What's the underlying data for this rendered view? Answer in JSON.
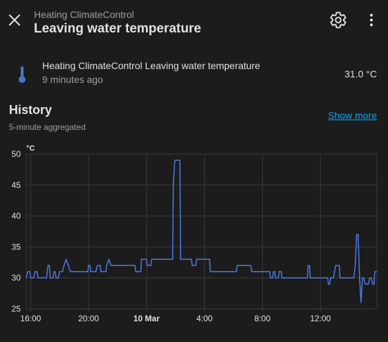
{
  "header": {
    "subtitle": "Heating ClimateControl",
    "title": "Leaving water temperature"
  },
  "icons": {
    "close": "close-icon",
    "settings": "gear-icon",
    "more": "more-vertical-icon",
    "entity": "thermometer-icon"
  },
  "entity": {
    "name": "Heating ClimateControl Leaving water temperature",
    "last_changed": "9 minutes ago",
    "state": "31.0 °C"
  },
  "history": {
    "title": "History",
    "subtitle": "5-minute aggregated",
    "show_more_label": "Show more"
  },
  "colors": {
    "background": "#1c1c1c",
    "line": "#4d7ae6",
    "accent": "#03a9f4",
    "grid": "#3a3a3a"
  },
  "chart_data": {
    "type": "line",
    "ylabel": "°C",
    "ylim": [
      25,
      50
    ],
    "yticks": [
      25,
      30,
      35,
      40,
      45,
      50
    ],
    "xlim": [
      15.7,
      39.9
    ],
    "xticks": [
      {
        "value": 16,
        "label": "16:00",
        "bold": false
      },
      {
        "value": 20,
        "label": "20:00",
        "bold": false
      },
      {
        "value": 24,
        "label": "10 Mar",
        "bold": true
      },
      {
        "value": 28,
        "label": "4:00",
        "bold": false
      },
      {
        "value": 32,
        "label": "8:00",
        "bold": false
      },
      {
        "value": 36,
        "label": "12:00",
        "bold": false
      }
    ],
    "grid": true,
    "series": [
      {
        "points": [
          [
            15.7,
            30
          ],
          [
            15.8,
            31
          ],
          [
            15.95,
            31
          ],
          [
            16.0,
            30
          ],
          [
            16.2,
            30
          ],
          [
            16.3,
            31
          ],
          [
            16.45,
            31
          ],
          [
            16.5,
            30
          ],
          [
            17.1,
            30
          ],
          [
            17.2,
            32
          ],
          [
            17.3,
            32
          ],
          [
            17.35,
            30
          ],
          [
            17.55,
            30
          ],
          [
            17.6,
            31
          ],
          [
            17.7,
            31
          ],
          [
            17.75,
            30
          ],
          [
            17.9,
            30
          ],
          [
            18.0,
            31
          ],
          [
            18.2,
            31
          ],
          [
            18.3,
            32
          ],
          [
            18.45,
            33
          ],
          [
            18.6,
            32
          ],
          [
            18.75,
            31
          ],
          [
            19.95,
            31
          ],
          [
            20.0,
            32
          ],
          [
            20.1,
            32
          ],
          [
            20.15,
            31
          ],
          [
            20.5,
            31
          ],
          [
            20.6,
            32
          ],
          [
            20.8,
            32
          ],
          [
            20.85,
            31
          ],
          [
            21.2,
            31
          ],
          [
            21.25,
            32
          ],
          [
            21.4,
            33
          ],
          [
            21.55,
            32
          ],
          [
            23.2,
            32
          ],
          [
            23.25,
            31
          ],
          [
            23.6,
            31
          ],
          [
            23.65,
            33
          ],
          [
            24.0,
            33
          ],
          [
            24.05,
            32
          ],
          [
            24.3,
            32
          ],
          [
            24.35,
            33
          ],
          [
            25.8,
            33
          ],
          [
            25.85,
            45
          ],
          [
            25.95,
            49
          ],
          [
            26.3,
            49
          ],
          [
            26.35,
            33
          ],
          [
            27.1,
            33
          ],
          [
            27.15,
            32
          ],
          [
            27.4,
            32
          ],
          [
            27.45,
            33
          ],
          [
            28.35,
            33
          ],
          [
            28.4,
            31
          ],
          [
            30.2,
            31
          ],
          [
            30.25,
            32
          ],
          [
            31.2,
            32
          ],
          [
            31.25,
            31
          ],
          [
            32.5,
            31
          ],
          [
            32.55,
            30
          ],
          [
            32.7,
            30
          ],
          [
            32.75,
            31
          ],
          [
            32.85,
            31
          ],
          [
            32.9,
            30
          ],
          [
            33.1,
            30
          ],
          [
            33.15,
            31
          ],
          [
            33.3,
            31
          ],
          [
            33.35,
            30
          ],
          [
            35.1,
            30
          ],
          [
            35.15,
            32
          ],
          [
            35.25,
            32
          ],
          [
            35.3,
            30
          ],
          [
            36.5,
            30
          ],
          [
            36.55,
            29
          ],
          [
            36.65,
            29
          ],
          [
            36.7,
            30
          ],
          [
            36.9,
            30
          ],
          [
            37.05,
            32
          ],
          [
            37.3,
            32
          ],
          [
            37.35,
            30
          ],
          [
            38.3,
            30
          ],
          [
            38.4,
            32
          ],
          [
            38.5,
            37
          ],
          [
            38.6,
            37
          ],
          [
            38.7,
            30
          ],
          [
            38.8,
            26
          ],
          [
            38.9,
            30
          ],
          [
            39.0,
            30
          ],
          [
            39.1,
            29
          ],
          [
            39.3,
            29
          ],
          [
            39.4,
            30
          ],
          [
            39.5,
            30
          ],
          [
            39.6,
            29
          ],
          [
            39.7,
            29
          ],
          [
            39.75,
            31
          ],
          [
            39.9,
            31
          ]
        ]
      }
    ]
  }
}
